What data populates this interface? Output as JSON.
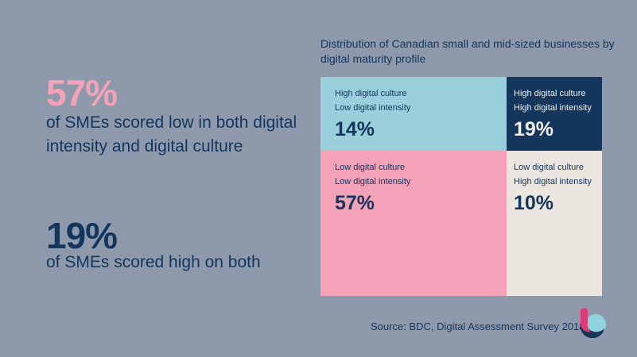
{
  "left": {
    "stat1": {
      "value": "57%",
      "text": "of SMEs scored low in both digital intensity and digital culture",
      "color": "#f4a2b7"
    },
    "stat2": {
      "value": "19%",
      "text": "of SMEs scored high on both",
      "color": "#14355c"
    }
  },
  "chart_data": {
    "type": "mosaic",
    "title": "Distribution of Canadian small and mid-sized businesses by digital maturity profile",
    "cells": [
      {
        "label1": "High digital culture",
        "label2": "Low digital intensity",
        "value": 14,
        "display": "14%",
        "color": "#9ad0dc"
      },
      {
        "label1": "High digital culture",
        "label2": "High digital intensity",
        "value": 19,
        "display": "19%",
        "color": "#14355c"
      },
      {
        "label1": "Low digital culture",
        "label2": "Low digital intensity",
        "value": 57,
        "display": "57%",
        "color": "#f4a2b7"
      },
      {
        "label1": "Low digital culture",
        "label2": "High digital intensity",
        "value": 10,
        "display": "10%",
        "color": "#ebe6df"
      }
    ]
  },
  "source": "Source: BDC, Digital Assessment Survey 2018",
  "logo": {
    "icon": "bdc-logo"
  }
}
